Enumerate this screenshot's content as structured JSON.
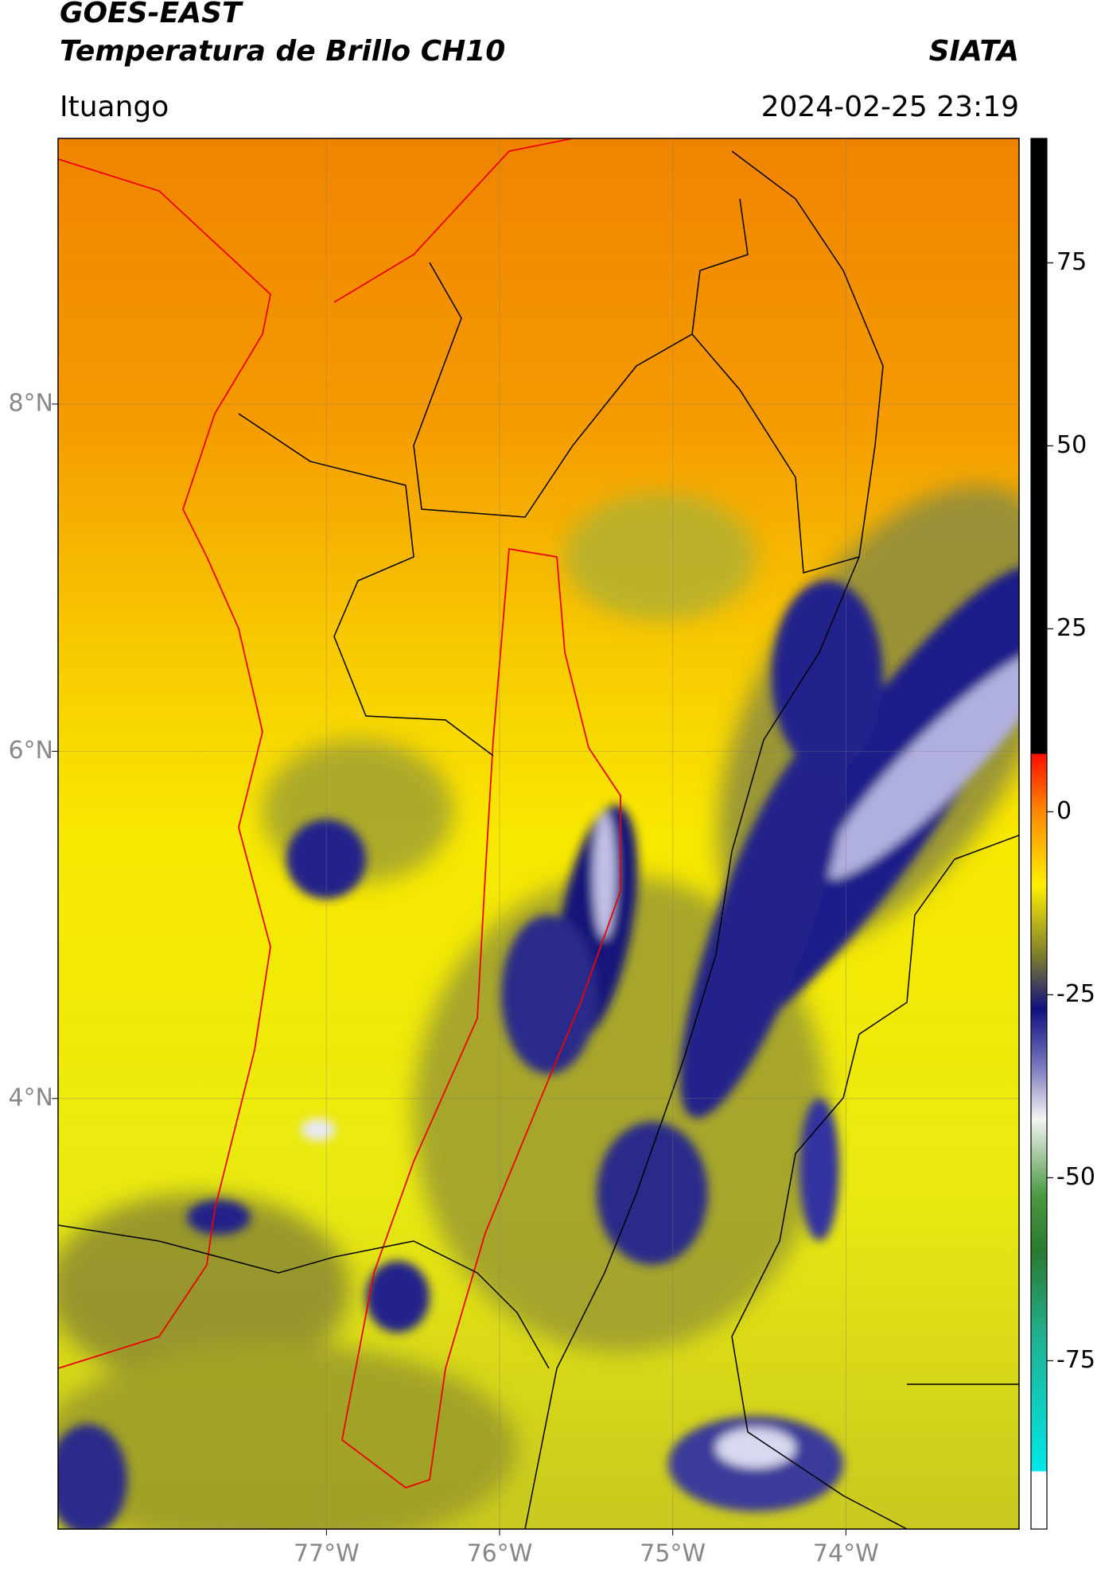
{
  "header": {
    "title": "GOES-EAST",
    "subtitle": "Temperatura de Brillo CH10",
    "agency": "SIATA",
    "region": "Ituango",
    "timestamp": "2024-02-25 23:19"
  },
  "map": {
    "lonlim": [
      -78.55,
      -73.0
    ],
    "latlim": [
      1.52,
      9.53
    ],
    "lonticks": [
      {
        "value": -77,
        "label": "77°W"
      },
      {
        "value": -76,
        "label": "76°W"
      },
      {
        "value": -75,
        "label": "75°W"
      },
      {
        "value": -74,
        "label": "74°W"
      }
    ],
    "latticks": [
      {
        "value": 8,
        "label": "8°N"
      },
      {
        "value": 6,
        "label": "6°N"
      },
      {
        "value": 4,
        "label": "4°N"
      }
    ],
    "grid": true
  },
  "colorbar": {
    "range": [
      -98,
      92
    ],
    "ticks": [
      75,
      50,
      25,
      0,
      -25,
      -50,
      -75
    ]
  }
}
